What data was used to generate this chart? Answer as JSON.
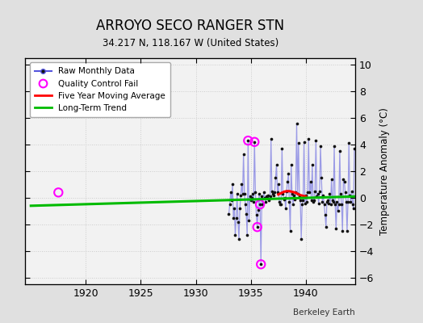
{
  "title": "ARROYO SECO RANGER STN",
  "subtitle": "34.217 N, 118.167 W (United States)",
  "credit": "Berkeley Earth",
  "ylabel": "Temperature Anomaly (°C)",
  "xlim": [
    1914.5,
    1944.5
  ],
  "ylim": [
    -6.5,
    10.5
  ],
  "yticks": [
    -6,
    -4,
    -2,
    0,
    2,
    4,
    6,
    8,
    10
  ],
  "xticks": [
    1920,
    1925,
    1930,
    1935,
    1940
  ],
  "bg_color": "#e0e0e0",
  "plot_bg_color": "#f2f2f2",
  "raw_monthly_x": [
    1933.0,
    1933.083,
    1933.167,
    1933.25,
    1933.333,
    1933.417,
    1933.5,
    1933.583,
    1933.667,
    1933.75,
    1933.833,
    1933.917,
    1934.0,
    1934.083,
    1934.167,
    1934.25,
    1934.333,
    1934.417,
    1934.5,
    1934.583,
    1934.667,
    1934.75,
    1934.833,
    1934.917,
    1935.0,
    1935.083,
    1935.167,
    1935.25,
    1935.333,
    1935.417,
    1935.5,
    1935.583,
    1935.667,
    1935.75,
    1935.833,
    1935.917,
    1936.0,
    1936.083,
    1936.167,
    1936.25,
    1936.333,
    1936.417,
    1936.5,
    1936.583,
    1936.667,
    1936.75,
    1936.833,
    1936.917,
    1937.0,
    1937.083,
    1937.167,
    1937.25,
    1937.333,
    1937.417,
    1937.5,
    1937.583,
    1937.667,
    1937.75,
    1937.833,
    1937.917,
    1938.0,
    1938.083,
    1938.167,
    1938.25,
    1938.333,
    1938.417,
    1938.5,
    1938.583,
    1938.667,
    1938.75,
    1938.833,
    1938.917,
    1939.0,
    1939.083,
    1939.167,
    1939.25,
    1939.333,
    1939.417,
    1939.5,
    1939.583,
    1939.667,
    1939.75,
    1939.833,
    1939.917,
    1940.0,
    1940.083,
    1940.167,
    1940.25,
    1940.333,
    1940.417,
    1940.5,
    1940.583,
    1940.667,
    1940.75,
    1940.833,
    1940.917,
    1941.0,
    1941.083,
    1941.167,
    1941.25,
    1941.333,
    1941.417,
    1941.5,
    1941.583,
    1941.667,
    1941.75,
    1941.833,
    1941.917,
    1942.0,
    1942.083,
    1942.167,
    1942.25,
    1942.333,
    1942.417,
    1942.5,
    1942.583,
    1942.667,
    1942.75,
    1942.833,
    1942.917,
    1943.0,
    1943.083,
    1943.167,
    1943.25,
    1943.333,
    1943.417,
    1943.5,
    1943.583,
    1943.667,
    1943.75,
    1943.833,
    1943.917,
    1944.0,
    1944.083,
    1944.167,
    1944.25,
    1944.333,
    1944.417
  ],
  "raw_monthly_y": [
    -1.2,
    -0.5,
    0.4,
    -0.2,
    1.0,
    -1.5,
    -0.8,
    -2.8,
    -1.5,
    0.3,
    -1.8,
    -3.1,
    -0.8,
    0.2,
    1.0,
    0.3,
    3.3,
    0.3,
    -0.5,
    -1.2,
    -2.8,
    4.3,
    -1.7,
    0.1,
    -0.2,
    0.0,
    0.3,
    -0.3,
    4.2,
    0.4,
    -1.3,
    -2.2,
    -0.9,
    0.3,
    -0.5,
    -5.0,
    0.1,
    -0.5,
    0.4,
    0.0,
    -0.3,
    0.1,
    0.0,
    0.2,
    -0.2,
    0.1,
    4.4,
    0.5,
    0.3,
    0.2,
    0.4,
    1.5,
    2.5,
    0.4,
    1.0,
    -0.3,
    -0.5,
    -0.5,
    3.7,
    0.3,
    -0.1,
    0.0,
    -0.8,
    0.5,
    1.2,
    1.8,
    -0.3,
    -2.5,
    2.5,
    0.3,
    -0.5,
    0.2,
    -0.1,
    0.4,
    5.6,
    0.3,
    4.1,
    0.1,
    -0.2,
    -3.1,
    -0.5,
    -0.2,
    4.2,
    -0.4,
    0.2,
    -0.3,
    0.4,
    4.4,
    0.4,
    1.2,
    -0.2,
    2.5,
    -0.3,
    -0.2,
    0.5,
    4.3,
    0.1,
    0.3,
    -0.4,
    0.5,
    3.9,
    1.5,
    -0.3,
    0.2,
    -0.5,
    -1.3,
    -2.2,
    -0.3,
    -0.2,
    -0.4,
    0.3,
    -0.5,
    1.4,
    -0.2,
    -0.3,
    3.9,
    -0.5,
    -2.3,
    -0.3,
    -1.0,
    -0.5,
    3.5,
    0.3,
    -0.5,
    -2.5,
    1.4,
    1.2,
    0.4,
    -0.3,
    -2.5,
    -0.3,
    4.1,
    0.2,
    -0.3,
    0.5,
    -0.5,
    -0.8,
    3.7
  ],
  "qc_fail_x": [
    1917.5,
    1934.75,
    1935.333,
    1935.583,
    1935.833,
    1935.917
  ],
  "qc_fail_y": [
    0.4,
    4.3,
    4.2,
    -2.2,
    -0.5,
    -5.0
  ],
  "five_year_ma_x": [
    1937.5,
    1937.75,
    1938.0,
    1938.25,
    1938.5,
    1938.75,
    1939.0,
    1939.25,
    1939.5,
    1939.75,
    1940.0
  ],
  "five_year_ma_y": [
    0.25,
    0.35,
    0.45,
    0.5,
    0.5,
    0.45,
    0.4,
    0.3,
    0.2,
    0.15,
    0.1
  ],
  "long_term_trend_x": [
    1915.0,
    1944.5
  ],
  "long_term_trend_y": [
    -0.6,
    0.1
  ],
  "line_color": "#5555dd",
  "line_alpha": 0.55,
  "marker_color": "#111111",
  "qc_color": "#ff00ff",
  "ma_color": "#ff0000",
  "trend_color": "#00bb00",
  "grid_color": "#cccccc"
}
